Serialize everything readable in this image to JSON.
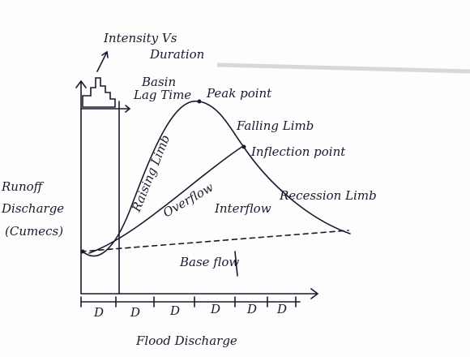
{
  "header": {
    "title_line1": "Intensity Vs",
    "title_line2": "Duration"
  },
  "labels": {
    "basin": "Basin",
    "lag_time": "Lag Time",
    "peak_point": "Peak point",
    "falling_limb": "Falling Limb",
    "inflection_point": "Inflection point",
    "raising_limb": "Raising Limb",
    "overflow": "Overflow",
    "interflow": "Interflow",
    "recession_limb": "Recession Limb",
    "base_flow": "Base flow"
  },
  "y_axis_label": [
    "Runoff",
    "Discharge",
    "(Cumecs)"
  ],
  "durations": [
    "D",
    "D",
    "D",
    "D",
    "D",
    "D"
  ],
  "x_axis_label": "Flood Discharge"
}
